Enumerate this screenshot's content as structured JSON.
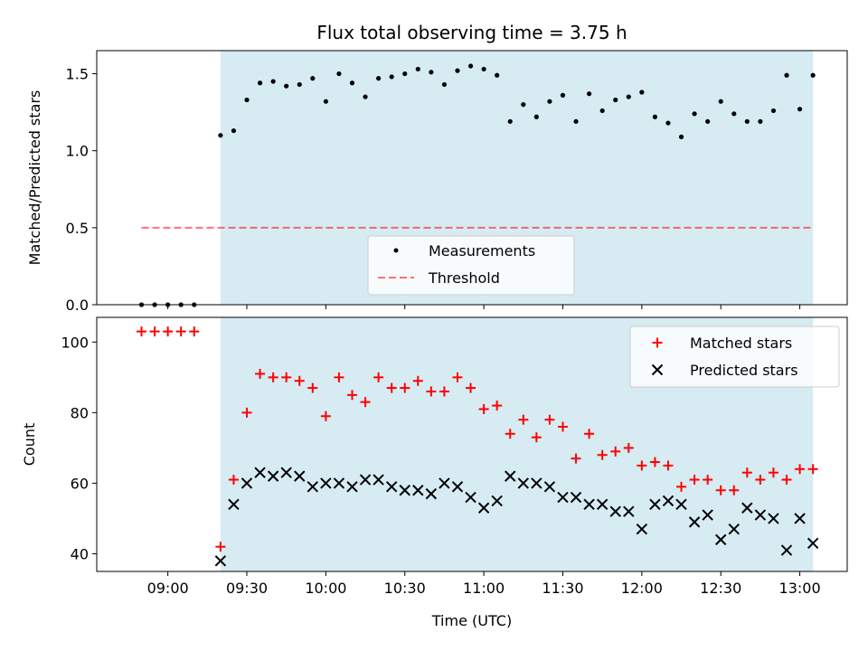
{
  "colors": {
    "shade": "#add8e6",
    "matched": "#ff0000",
    "predicted": "#000000",
    "threshold": "#ff0000",
    "measurement": "#000000"
  },
  "chart_data": [
    {
      "type": "scatter",
      "title": "Flux total observing time = 3.75 h",
      "xlabel": "",
      "ylabel": "Matched/Predicted stars",
      "xlim": [
        "08:33",
        "13:18"
      ],
      "ylim": [
        0,
        1.65
      ],
      "y_ticks": [
        0.0,
        0.5,
        1.0,
        1.5
      ],
      "y_tick_labels": [
        "0.0",
        "0.5",
        "1.0",
        "1.5"
      ],
      "shaded_span": [
        "09:20",
        "13:05"
      ],
      "legend_position": "lower center",
      "threshold": {
        "name": "Threshold",
        "value": 0.5,
        "x": [
          "08:50",
          "13:05"
        ]
      },
      "series": [
        {
          "name": "Measurements",
          "x": [
            "08:50",
            "08:55",
            "09:00",
            "09:05",
            "09:10",
            "09:20",
            "09:25",
            "09:30",
            "09:35",
            "09:40",
            "09:45",
            "09:50",
            "09:55",
            "10:00",
            "10:05",
            "10:10",
            "10:15",
            "10:20",
            "10:25",
            "10:30",
            "10:35",
            "10:40",
            "10:45",
            "10:50",
            "10:55",
            "11:00",
            "11:05",
            "11:10",
            "11:15",
            "11:20",
            "11:25",
            "11:30",
            "11:35",
            "11:40",
            "11:45",
            "11:50",
            "11:55",
            "12:00",
            "12:05",
            "12:10",
            "12:15",
            "12:20",
            "12:25",
            "12:30",
            "12:35",
            "12:40",
            "12:45",
            "12:50",
            "12:55",
            "13:00",
            "13:05"
          ],
          "values": [
            0,
            0,
            0,
            0,
            0,
            1.1,
            1.13,
            1.33,
            1.44,
            1.45,
            1.42,
            1.43,
            1.47,
            1.32,
            1.5,
            1.44,
            1.35,
            1.47,
            1.48,
            1.5,
            1.53,
            1.51,
            1.43,
            1.52,
            1.55,
            1.53,
            1.49,
            1.19,
            1.3,
            1.22,
            1.32,
            1.36,
            1.19,
            1.37,
            1.26,
            1.33,
            1.35,
            1.38,
            1.22,
            1.18,
            1.09,
            1.24,
            1.19,
            1.32,
            1.24,
            1.19,
            1.19,
            1.26,
            1.49,
            1.27,
            1.49
          ]
        }
      ]
    },
    {
      "type": "scatter",
      "title": "",
      "xlabel": "Time (UTC)",
      "ylabel": "Count",
      "xlim": [
        "08:33",
        "13:18"
      ],
      "ylim": [
        35,
        107
      ],
      "y_ticks": [
        40,
        60,
        80,
        100
      ],
      "y_tick_labels": [
        "40",
        "60",
        "80",
        "100"
      ],
      "x_ticks": [
        "09:00",
        "09:30",
        "10:00",
        "10:30",
        "11:00",
        "11:30",
        "12:00",
        "12:30",
        "13:00"
      ],
      "x_tick_labels": [
        "09:00",
        "09:30",
        "10:00",
        "10:30",
        "11:00",
        "11:30",
        "12:00",
        "12:30",
        "13:00"
      ],
      "shaded_span": [
        "09:20",
        "13:05"
      ],
      "legend_position": "upper right",
      "series": [
        {
          "name": "Matched stars",
          "marker": "plus",
          "x": [
            "08:50",
            "08:55",
            "09:00",
            "09:05",
            "09:10",
            "09:20",
            "09:25",
            "09:30",
            "09:35",
            "09:40",
            "09:45",
            "09:50",
            "09:55",
            "10:00",
            "10:05",
            "10:10",
            "10:15",
            "10:20",
            "10:25",
            "10:30",
            "10:35",
            "10:40",
            "10:45",
            "10:50",
            "10:55",
            "11:00",
            "11:05",
            "11:10",
            "11:15",
            "11:20",
            "11:25",
            "11:30",
            "11:35",
            "11:40",
            "11:45",
            "11:50",
            "11:55",
            "12:00",
            "12:05",
            "12:10",
            "12:15",
            "12:20",
            "12:25",
            "12:30",
            "12:35",
            "12:40",
            "12:45",
            "12:50",
            "12:55",
            "13:00",
            "13:05"
          ],
          "values": [
            103,
            103,
            103,
            103,
            103,
            42,
            61,
            80,
            91,
            90,
            90,
            89,
            87,
            79,
            90,
            85,
            83,
            90,
            87,
            87,
            89,
            86,
            86,
            90,
            87,
            81,
            82,
            74,
            78,
            73,
            78,
            76,
            67,
            74,
            68,
            69,
            70,
            65,
            66,
            65,
            59,
            61,
            61,
            58,
            58,
            63,
            61,
            63,
            61,
            64,
            64
          ]
        },
        {
          "name": "Predicted stars",
          "marker": "x",
          "x": [
            "09:20",
            "09:25",
            "09:30",
            "09:35",
            "09:40",
            "09:45",
            "09:50",
            "09:55",
            "10:00",
            "10:05",
            "10:10",
            "10:15",
            "10:20",
            "10:25",
            "10:30",
            "10:35",
            "10:40",
            "10:45",
            "10:50",
            "10:55",
            "11:00",
            "11:05",
            "11:10",
            "11:15",
            "11:20",
            "11:25",
            "11:30",
            "11:35",
            "11:40",
            "11:45",
            "11:50",
            "11:55",
            "12:00",
            "12:05",
            "12:10",
            "12:15",
            "12:20",
            "12:25",
            "12:30",
            "12:35",
            "12:40",
            "12:45",
            "12:50",
            "12:55",
            "13:00",
            "13:05"
          ],
          "values": [
            38,
            54,
            60,
            63,
            62,
            63,
            62,
            59,
            60,
            60,
            59,
            61,
            61,
            59,
            58,
            58,
            57,
            60,
            59,
            56,
            53,
            55,
            62,
            60,
            60,
            59,
            56,
            56,
            54,
            54,
            52,
            52,
            47,
            54,
            55,
            54,
            49,
            51,
            44,
            47,
            53,
            51,
            50,
            41,
            50,
            43
          ]
        }
      ]
    }
  ]
}
